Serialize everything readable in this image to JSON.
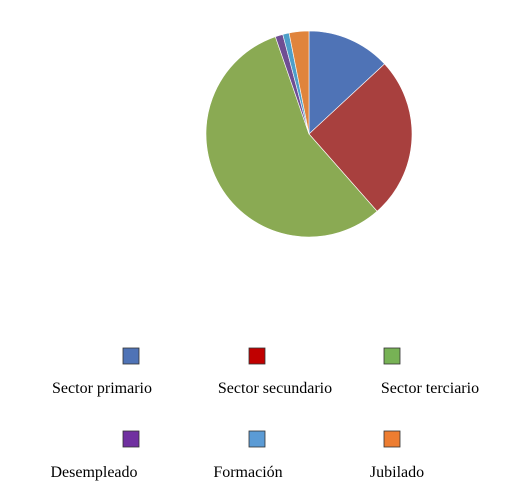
{
  "chart_data": {
    "type": "pie",
    "title": "",
    "slices": [
      {
        "label": "Sector primario",
        "value": 13.1,
        "color": "#4F73B6"
      },
      {
        "label": "Sector secundario",
        "value": 25.4,
        "color": "#A8403E"
      },
      {
        "label": "Sector terciario",
        "value": 56.2,
        "color": "#8AAA53"
      },
      {
        "label": "Desempleado",
        "value": 1.2,
        "color": "#6F4E93"
      },
      {
        "label": "Formación",
        "value": 1.0,
        "color": "#4E9FC9"
      },
      {
        "label": "Jubilado",
        "value": 3.1,
        "color": "#E0843C"
      }
    ],
    "legend": {
      "placement": "bottom",
      "swatch_colors": [
        "#4F73B6",
        "#C00000",
        "#77B255",
        "#7030A0",
        "#5B9BD5",
        "#ED7D31"
      ]
    },
    "grid": false
  }
}
